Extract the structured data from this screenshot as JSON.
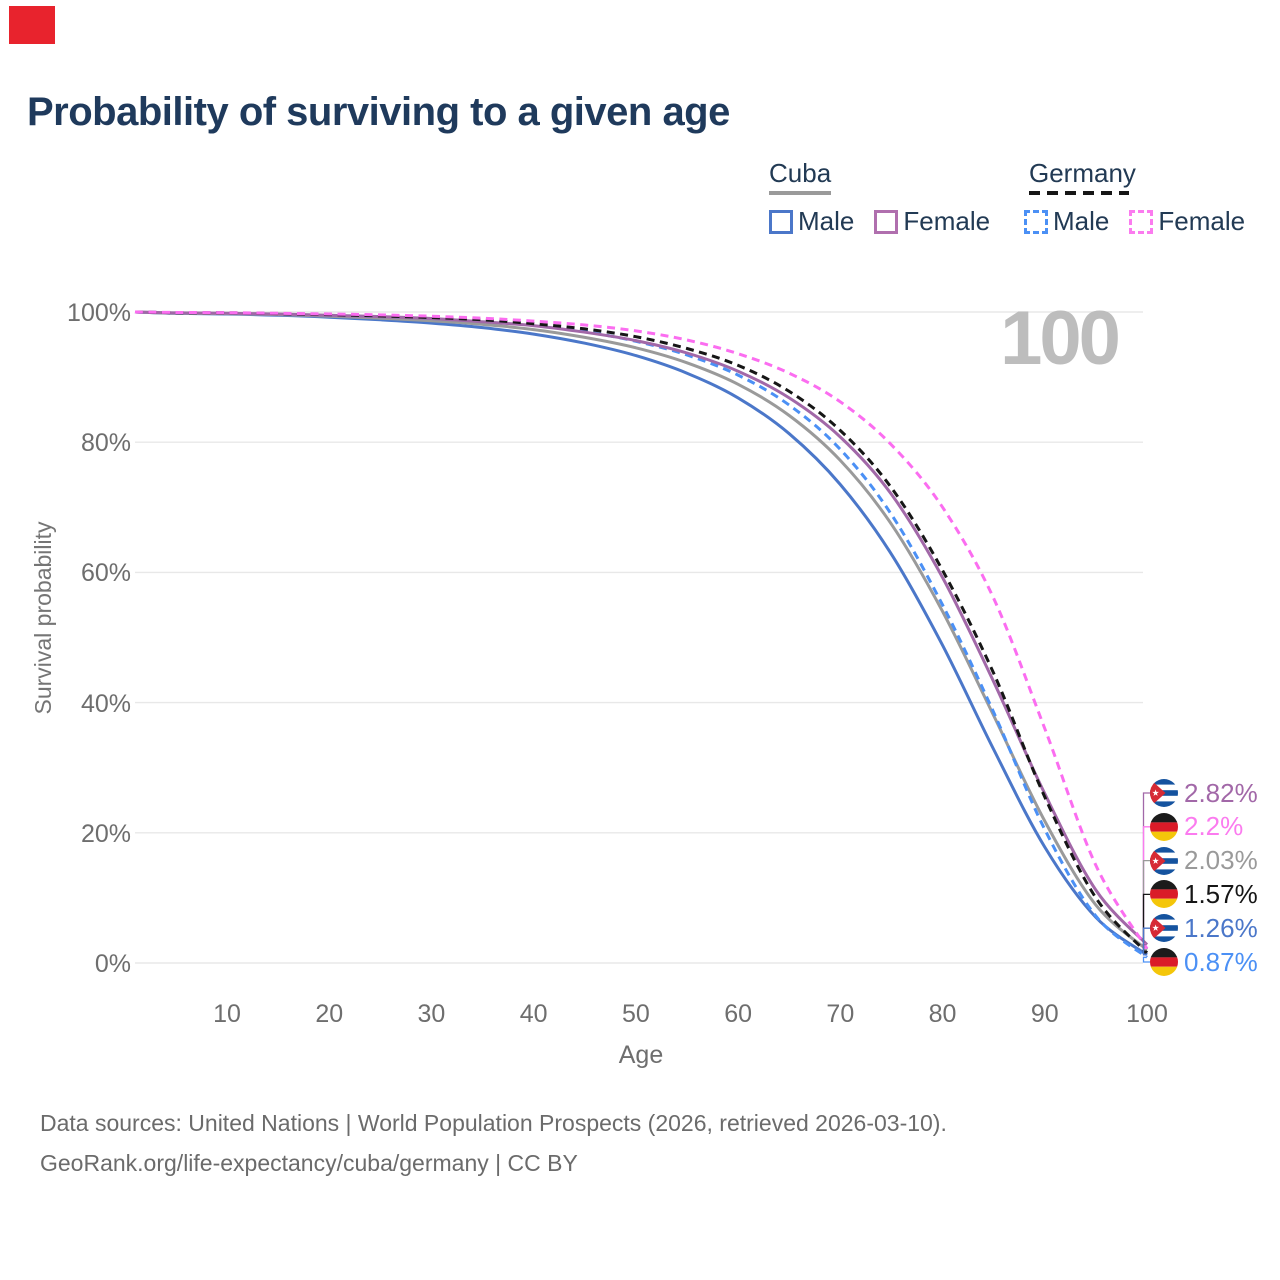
{
  "marker": {
    "color": "#e8232d"
  },
  "title": "Probability of surviving to a given age",
  "legend": {
    "groups": [
      {
        "label": "Cuba",
        "line_style": "solid",
        "line_color": "#9a9a9a",
        "items": [
          {
            "label": "Male",
            "color": "#4b77c9",
            "dashed": false
          },
          {
            "label": "Female",
            "color": "#b06fae",
            "dashed": false
          }
        ]
      },
      {
        "label": "Germany",
        "line_style": "dashed",
        "line_color": "#161616",
        "items": [
          {
            "label": "Male",
            "color": "#4b90f5",
            "dashed": true
          },
          {
            "label": "Female",
            "color": "#fb7bef",
            "dashed": true
          }
        ]
      }
    ]
  },
  "watermark": "100",
  "chart_data": {
    "type": "line",
    "title": "Probability of surviving to a given age",
    "xlabel": "Age",
    "ylabel": "Survival probability",
    "xlim": [
      1,
      100
    ],
    "ylim": [
      0,
      100
    ],
    "grid": "horizontal",
    "x_ticks": [
      10,
      20,
      30,
      40,
      50,
      60,
      70,
      80,
      90,
      100
    ],
    "y_ticks": [
      {
        "value": 100,
        "label": "100%"
      },
      {
        "value": 80,
        "label": "80%"
      },
      {
        "value": 60,
        "label": "60%"
      },
      {
        "value": 40,
        "label": "40%"
      },
      {
        "value": 20,
        "label": "20%"
      },
      {
        "value": 0,
        "label": "0%"
      }
    ],
    "ages": [
      1,
      5,
      10,
      15,
      20,
      25,
      30,
      35,
      40,
      45,
      50,
      55,
      60,
      65,
      70,
      75,
      80,
      85,
      90,
      95,
      100
    ],
    "series": [
      {
        "id": "cuba-male",
        "name": "Cuba Male",
        "country": "Cuba",
        "sex": "Male",
        "style": "solid",
        "color": "#4b77c9",
        "end_label": "1.26%",
        "values": [
          100,
          99.8,
          99.7,
          99.5,
          99.2,
          98.8,
          98.3,
          97.6,
          96.6,
          95.2,
          93.3,
          90.6,
          86.8,
          81.3,
          73.5,
          62.8,
          48.8,
          32.8,
          17.8,
          7.0,
          1.26
        ]
      },
      {
        "id": "cuba-both",
        "name": "Cuba Both sexes",
        "country": "Cuba",
        "sex": "Both",
        "style": "solid",
        "color": "#9a9a9a",
        "end_label": "2.03%",
        "values": [
          100,
          99.82,
          99.75,
          99.6,
          99.35,
          99.05,
          98.65,
          98.1,
          97.3,
          96.1,
          94.5,
          92.2,
          88.9,
          84.1,
          77.2,
          67.4,
          54.0,
          38.0,
          21.8,
          8.9,
          2.03
        ]
      },
      {
        "id": "germany-male",
        "name": "Germany Male",
        "country": "Germany",
        "sex": "Male",
        "style": "dashed",
        "color": "#4b90f5",
        "end_label": "0.87%",
        "values": [
          100,
          99.9,
          99.85,
          99.7,
          99.5,
          99.3,
          99.0,
          98.55,
          97.95,
          97.0,
          95.5,
          93.4,
          90.3,
          85.7,
          78.9,
          68.9,
          55.0,
          38.5,
          20.5,
          7.2,
          0.87
        ]
      },
      {
        "id": "cuba-female",
        "name": "Cuba Female",
        "country": "Cuba",
        "sex": "Female",
        "style": "solid",
        "color": "#a268a8",
        "end_label": "2.82%",
        "values": [
          100,
          99.86,
          99.8,
          99.7,
          99.5,
          99.3,
          99.0,
          98.5,
          97.9,
          96.9,
          95.6,
          93.7,
          90.9,
          86.8,
          80.8,
          72.0,
          59.2,
          43.2,
          26.0,
          11.2,
          2.82
        ]
      },
      {
        "id": "germany-both",
        "name": "Germany Both sexes",
        "country": "Germany",
        "sex": "Both",
        "style": "dashed",
        "color": "#161616",
        "end_label": "1.57%",
        "values": [
          100,
          99.9,
          99.87,
          99.75,
          99.6,
          99.4,
          99.15,
          98.8,
          98.2,
          97.4,
          96.2,
          94.4,
          91.8,
          87.8,
          81.8,
          73.0,
          60.3,
          44.5,
          25.5,
          10.0,
          1.57
        ]
      },
      {
        "id": "germany-female",
        "name": "Germany Female",
        "country": "Germany",
        "sex": "Female",
        "style": "dashed",
        "color": "#fb6df0",
        "end_label": "2.2%",
        "values": [
          100,
          99.93,
          99.9,
          99.8,
          99.7,
          99.55,
          99.35,
          99.05,
          98.6,
          98.0,
          97.1,
          95.7,
          93.6,
          90.6,
          86.2,
          79.6,
          70.0,
          56.0,
          36.0,
          15.0,
          2.2
        ]
      }
    ],
    "end_labels": [
      {
        "flag": "cuba",
        "series_id": "cuba-female",
        "label": "2.82%",
        "color": "#a268a8"
      },
      {
        "flag": "germany",
        "series_id": "germany-female",
        "label": "2.2%",
        "color": "#fb7bef"
      },
      {
        "flag": "cuba",
        "series_id": "cuba-both",
        "label": "2.03%",
        "color": "#9a9a9a"
      },
      {
        "flag": "germany",
        "series_id": "germany-both",
        "label": "1.57%",
        "color": "#161616"
      },
      {
        "flag": "cuba",
        "series_id": "cuba-male",
        "label": "1.26%",
        "color": "#4b77c9"
      },
      {
        "flag": "germany",
        "series_id": "germany-male",
        "label": "0.87%",
        "color": "#4b90f5"
      }
    ]
  },
  "footer": {
    "line1": "Data sources: United Nations | World Population Prospects (2026, retrieved 2026-03-10).",
    "line2": "GeoRank.org/life-expectancy/cuba/germany | CC BY"
  }
}
